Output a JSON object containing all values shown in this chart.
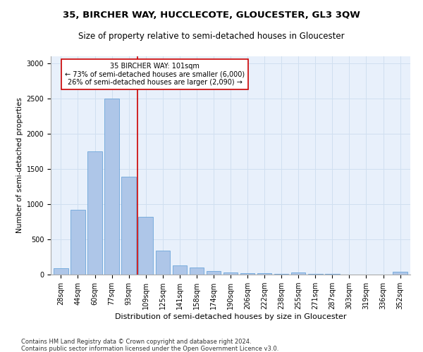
{
  "title_line1": "35, BIRCHER WAY, HUCCLECOTE, GLOUCESTER, GL3 3QW",
  "title_line2": "Size of property relative to semi-detached houses in Gloucester",
  "xlabel": "Distribution of semi-detached houses by size in Gloucester",
  "ylabel": "Number of semi-detached properties",
  "footer_line1": "Contains HM Land Registry data © Crown copyright and database right 2024.",
  "footer_line2": "Contains public sector information licensed under the Open Government Licence v3.0.",
  "categories": [
    "28sqm",
    "44sqm",
    "60sqm",
    "77sqm",
    "93sqm",
    "109sqm",
    "125sqm",
    "141sqm",
    "158sqm",
    "174sqm",
    "190sqm",
    "206sqm",
    "222sqm",
    "238sqm",
    "255sqm",
    "271sqm",
    "287sqm",
    "303sqm",
    "319sqm",
    "336sqm",
    "352sqm"
  ],
  "values": [
    90,
    920,
    1750,
    2500,
    1390,
    820,
    340,
    130,
    100,
    50,
    35,
    25,
    20,
    15,
    30,
    10,
    10,
    5,
    5,
    5,
    40
  ],
  "bar_color": "#aec6e8",
  "bar_edge_color": "#5b9bd5",
  "grid_color": "#d0dff0",
  "background_color": "#e8f0fb",
  "red_line_color": "#cc0000",
  "annotation_text": "35 BIRCHER WAY: 101sqm\n← 73% of semi-detached houses are smaller (6,000)\n26% of semi-detached houses are larger (2,090) →",
  "annotation_box_color": "white",
  "annotation_box_edge": "#cc0000",
  "ylim": [
    0,
    3100
  ],
  "yticks": [
    0,
    500,
    1000,
    1500,
    2000,
    2500,
    3000
  ],
  "title1_fontsize": 9.5,
  "title2_fontsize": 8.5,
  "xlabel_fontsize": 8,
  "ylabel_fontsize": 7.5,
  "tick_fontsize": 7,
  "annotation_fontsize": 7,
  "footer_fontsize": 6
}
